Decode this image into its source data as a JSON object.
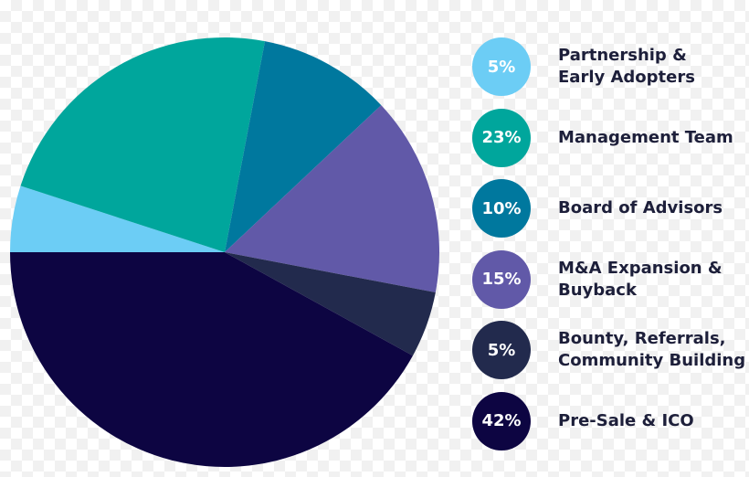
{
  "chart_data": {
    "type": "pie",
    "start_angle_deg": 180,
    "direction": "clockwise",
    "slices": [
      {
        "label": "Partnership &\nEarly Adopters",
        "value": 5,
        "value_label": "5%",
        "color": "#6ccdf5"
      },
      {
        "label": "Management Team",
        "value": 23,
        "value_label": "23%",
        "color": "#00a69c"
      },
      {
        "label": "Board of Advisors",
        "value": 10,
        "value_label": "10%",
        "color": "#00789e"
      },
      {
        "label": "M&A Expansion &\nBuyback",
        "value": 15,
        "value_label": "15%",
        "color": "#6159a8"
      },
      {
        "label": "Bounty, Referrals,\nCommunity Building",
        "value": 5,
        "value_label": "5%",
        "color": "#222a4d"
      },
      {
        "label": "Pre-Sale & ICO",
        "value": 42,
        "value_label": "42%",
        "color": "#0d0542"
      }
    ]
  }
}
